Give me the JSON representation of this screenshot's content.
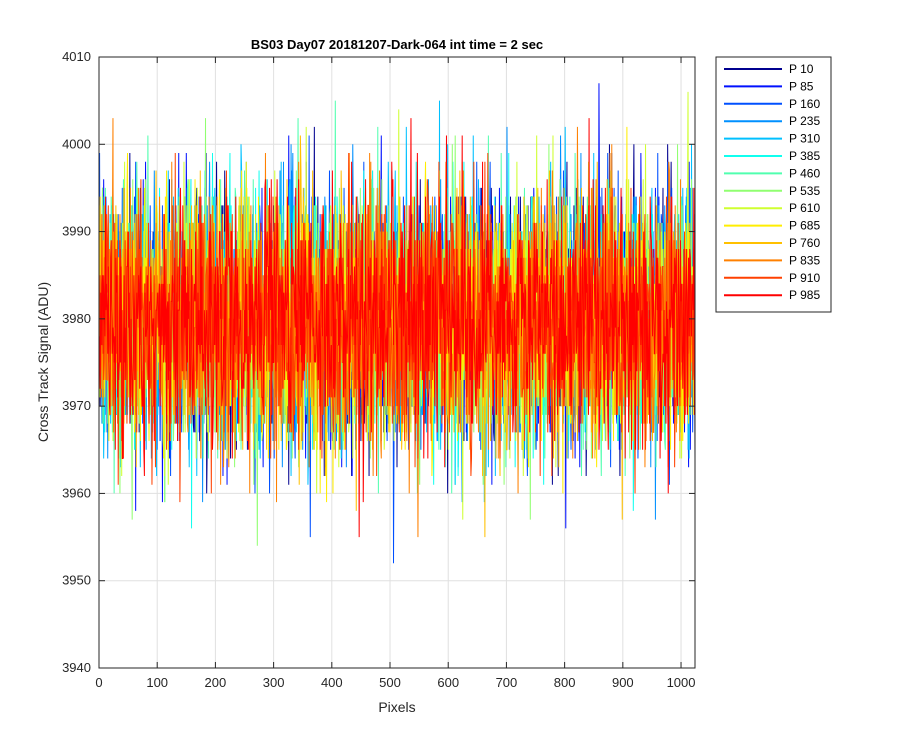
{
  "chart_data": {
    "type": "line",
    "title": "BS03 Day07 20181207-Dark-064 int time = 2 sec",
    "xlabel": "Pixels",
    "ylabel": "Cross Track Signal (ADU)",
    "xlim": [
      0,
      1024
    ],
    "ylim": [
      3940,
      4010
    ],
    "xticks": [
      0,
      100,
      200,
      300,
      400,
      500,
      600,
      700,
      800,
      900,
      1000
    ],
    "yticks": [
      3940,
      3950,
      3960,
      3970,
      3980,
      3990,
      4000,
      4010
    ],
    "grid": true,
    "legend_position": "outside-right",
    "series": [
      {
        "name": "P 10",
        "color": "#00008f"
      },
      {
        "name": "P 85",
        "color": "#0010ff"
      },
      {
        "name": "P 160",
        "color": "#0050ff"
      },
      {
        "name": "P 235",
        "color": "#0090ff"
      },
      {
        "name": "P 310",
        "color": "#00c0ff"
      },
      {
        "name": "P 385",
        "color": "#10ffef"
      },
      {
        "name": "P 460",
        "color": "#50ffaf"
      },
      {
        "name": "P 535",
        "color": "#90ff70"
      },
      {
        "name": "P 610",
        "color": "#cfff30"
      },
      {
        "name": "P 685",
        "color": "#ffee00"
      },
      {
        "name": "P 760",
        "color": "#ffc000"
      },
      {
        "name": "P 835",
        "color": "#ff8000"
      },
      {
        "name": "P 910",
        "color": "#ff4000"
      },
      {
        "name": "P 985",
        "color": "#ff0000"
      }
    ],
    "noise": {
      "mean": 3980,
      "sigma": 7,
      "min": 3949,
      "max": 4009,
      "points_per_series": 1024
    }
  }
}
